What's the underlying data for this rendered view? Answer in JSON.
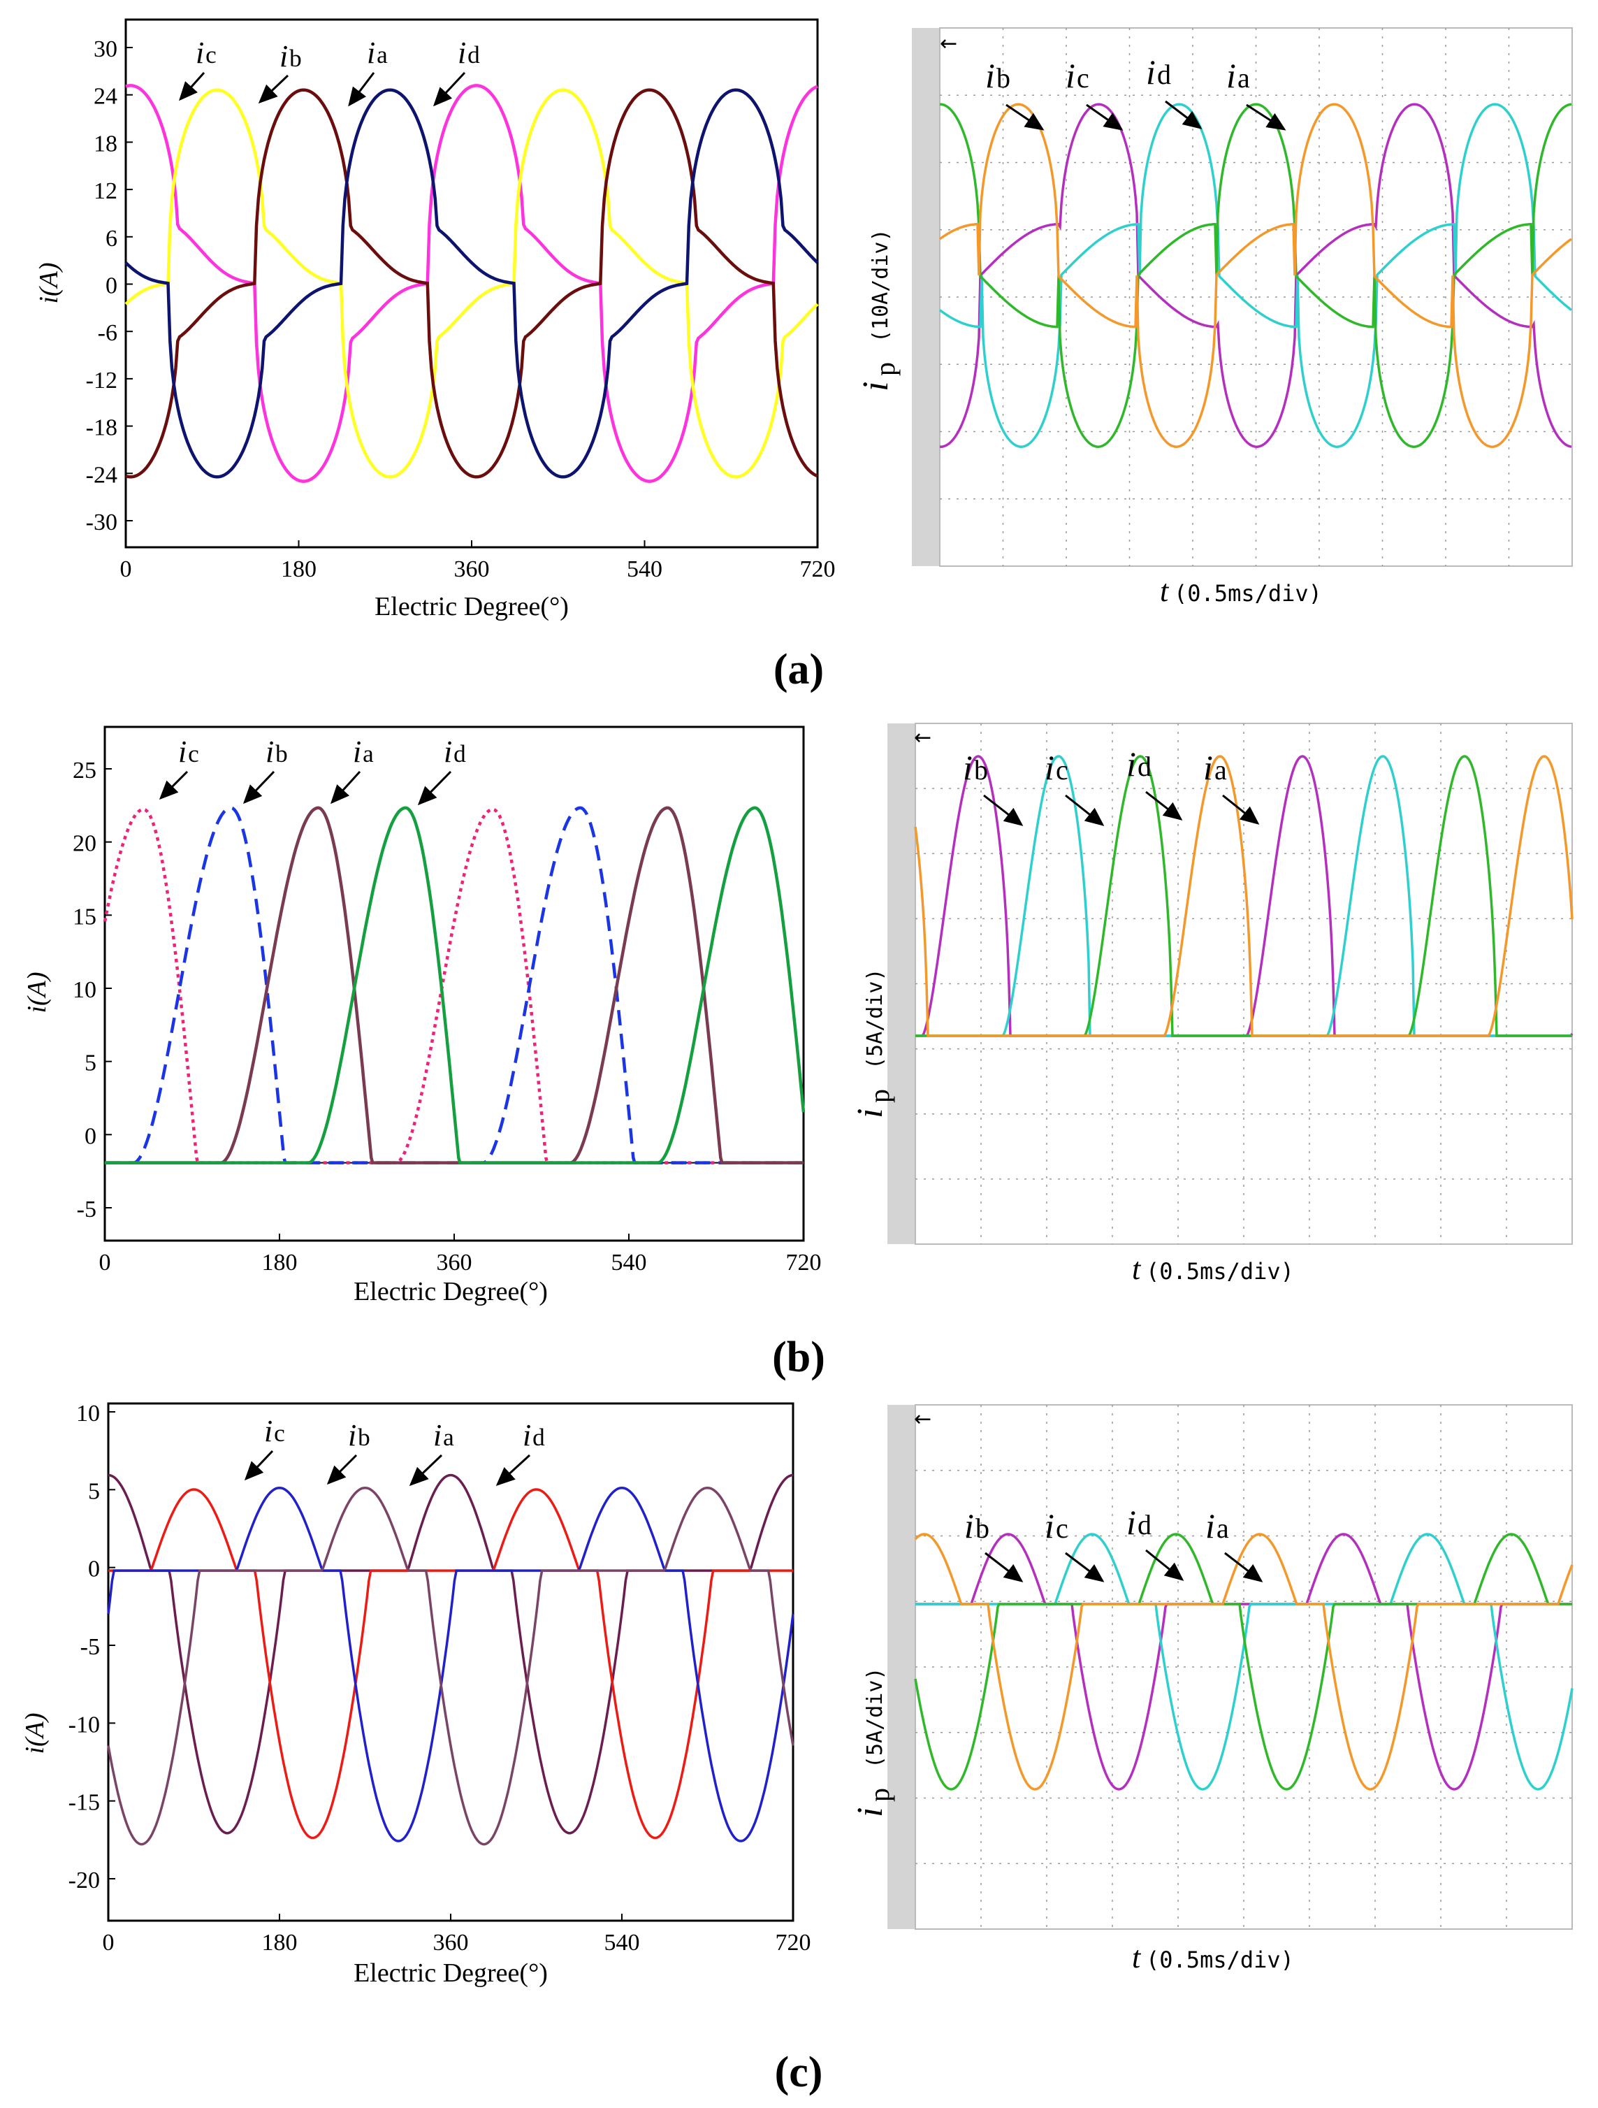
{
  "panels": [
    {
      "label": "(a)",
      "sim": {
        "ylabel": "i(A)",
        "xlabel": "Electric Degree(°)",
        "xticks": [
          "0",
          "180",
          "360",
          "540",
          "720"
        ],
        "yticks": [
          "30",
          "24",
          "18",
          "12",
          "6",
          "0",
          "-6",
          "-12",
          "-18",
          "-24",
          "-30"
        ],
        "annotations": [
          {
            "sym": "i",
            "sub": "c"
          },
          {
            "sym": "i",
            "sub": "b"
          },
          {
            "sym": "i",
            "sub": "a"
          },
          {
            "sym": "i",
            "sub": "d"
          }
        ]
      },
      "scope": {
        "ylabel_sym": "i",
        "ylabel_sub": "p",
        "ylabel_unit": "(10A/div)",
        "xlabel_sym": "t",
        "xlabel_unit": "(0.5ms/div)",
        "annotations": [
          {
            "sym": "i",
            "sub": "b"
          },
          {
            "sym": "i",
            "sub": "c"
          },
          {
            "sym": "i",
            "sub": "d"
          },
          {
            "sym": "i",
            "sub": "a"
          }
        ]
      }
    },
    {
      "label": "(b)",
      "sim": {
        "ylabel": "i(A)",
        "xlabel": "Electric Degree(°)",
        "xticks": [
          "0",
          "180",
          "360",
          "540",
          "720"
        ],
        "yticks": [
          "25",
          "20",
          "15",
          "10",
          "5",
          "0",
          "-5"
        ],
        "annotations": [
          {
            "sym": "i",
            "sub": "c"
          },
          {
            "sym": "i",
            "sub": "b"
          },
          {
            "sym": "i",
            "sub": "a"
          },
          {
            "sym": "i",
            "sub": "d"
          }
        ]
      },
      "scope": {
        "ylabel_sym": "i",
        "ylabel_sub": "p",
        "ylabel_unit": "(5A/div)",
        "xlabel_sym": "t",
        "xlabel_unit": "(0.5ms/div)",
        "annotations": [
          {
            "sym": "i",
            "sub": "b"
          },
          {
            "sym": "i",
            "sub": "c"
          },
          {
            "sym": "i",
            "sub": "d"
          },
          {
            "sym": "i",
            "sub": "a"
          }
        ]
      }
    },
    {
      "label": "(c)",
      "sim": {
        "ylabel": "i(A)",
        "xlabel": "Electric Degree(°)",
        "xticks": [
          "0",
          "180",
          "360",
          "540",
          "720"
        ],
        "yticks": [
          "10",
          "5",
          "0",
          "-5",
          "-10",
          "-15",
          "-20"
        ],
        "annotations": [
          {
            "sym": "i",
            "sub": "c"
          },
          {
            "sym": "i",
            "sub": "b"
          },
          {
            "sym": "i",
            "sub": "a"
          },
          {
            "sym": "i",
            "sub": "d"
          }
        ]
      },
      "scope": {
        "ylabel_sym": "i",
        "ylabel_sub": "p",
        "ylabel_unit": "(5A/div)",
        "xlabel_sym": "t",
        "xlabel_unit": "(0.5ms/div)",
        "annotations": [
          {
            "sym": "i",
            "sub": "b"
          },
          {
            "sym": "i",
            "sub": "c"
          },
          {
            "sym": "i",
            "sub": "d"
          },
          {
            "sym": "i",
            "sub": "a"
          }
        ]
      }
    }
  ],
  "colors": {
    "a_sim": [
      "#ff33dd",
      "#ffff22",
      "#6b0d0d",
      "#0d1470"
    ],
    "b_sim": [
      "#ee2277",
      "#1a35e6",
      "#7a3a52",
      "#15a040"
    ],
    "c_sim": [
      "#6b1d4f",
      "#ee1a14",
      "#2020cc",
      "#7a4466"
    ],
    "scope": [
      "#b52fbf",
      "#2ed0cf",
      "#2fb829",
      "#f4982a"
    ]
  },
  "chart_data": [
    {
      "type": "line",
      "panel": "(a) simulation",
      "xlabel": "Electric Degree(°)",
      "ylabel": "i(A)",
      "xlim": [
        0,
        720
      ],
      "ylim": [
        -30,
        30
      ],
      "note_shape": "four phase currents, period 360°, amplitude about 22 A",
      "series": [
        {
          "name": "ic",
          "peak": 23,
          "trough": -22,
          "phase_deg": -45,
          "color": "#ff33dd"
        },
        {
          "name": "ib",
          "peak": 22,
          "trough": -22,
          "phase_deg": 45,
          "color": "#ffff22"
        },
        {
          "name": "ia",
          "peak": 22,
          "trough": -22,
          "phase_deg": 135,
          "color": "#6b0d0d"
        },
        {
          "name": "id",
          "peak": 22,
          "trough": -22,
          "phase_deg": 225,
          "color": "#0d1470"
        }
      ]
    },
    {
      "type": "line",
      "panel": "(a) measured",
      "xlabel": "t(0.5ms/div)",
      "ylabel": "ip(10A/div)",
      "series": [
        {
          "name": "ib"
        },
        {
          "name": "ic"
        },
        {
          "name": "id"
        },
        {
          "name": "ia"
        }
      ]
    },
    {
      "type": "line",
      "panel": "(b) simulation",
      "xlabel": "Electric Degree(°)",
      "ylabel": "i(A)",
      "xlim": [
        0,
        720
      ],
      "ylim": [
        -5,
        28
      ],
      "series": [
        {
          "name": "ic",
          "peak": 22.7,
          "peak_x": [
            40,
            400
          ],
          "color": "#ee2277"
        },
        {
          "name": "ib",
          "peak": 22.8,
          "peak_x": [
            130,
            490
          ],
          "color": "#1a35e6"
        },
        {
          "name": "ia",
          "peak": 22.8,
          "peak_x": [
            220,
            580
          ],
          "color": "#7a3a52"
        },
        {
          "name": "id",
          "peak": 22.8,
          "peak_x": [
            310,
            670
          ],
          "color": "#15a040"
        }
      ]
    },
    {
      "type": "line",
      "panel": "(b) measured",
      "xlabel": "t(0.5ms/div)",
      "ylabel": "ip(5A/div)",
      "series": [
        {
          "name": "ib"
        },
        {
          "name": "ic"
        },
        {
          "name": "id"
        },
        {
          "name": "ia"
        }
      ]
    },
    {
      "type": "line",
      "panel": "(c) simulation",
      "xlabel": "Electric Degree(°)",
      "ylabel": "i(A)",
      "xlim": [
        0,
        720
      ],
      "ylim": [
        -22,
        10
      ],
      "series": [
        {
          "name": "ic",
          "peak": 6,
          "trough": -16.5,
          "color": "#6b1d4f"
        },
        {
          "name": "ib",
          "peak": 5.1,
          "trough": -16.8,
          "color": "#ee1a14"
        },
        {
          "name": "ia",
          "peak": 5.2,
          "trough": -17.0,
          "color": "#7a4466"
        },
        {
          "name": "id",
          "peak": 5.2,
          "trough": -17.2,
          "color": "#2020cc"
        }
      ]
    },
    {
      "type": "line",
      "panel": "(c) measured",
      "xlabel": "t(0.5ms/div)",
      "ylabel": "ip(5A/div)",
      "series": [
        {
          "name": "ib"
        },
        {
          "name": "ic"
        },
        {
          "name": "id"
        },
        {
          "name": "ia"
        }
      ]
    }
  ]
}
